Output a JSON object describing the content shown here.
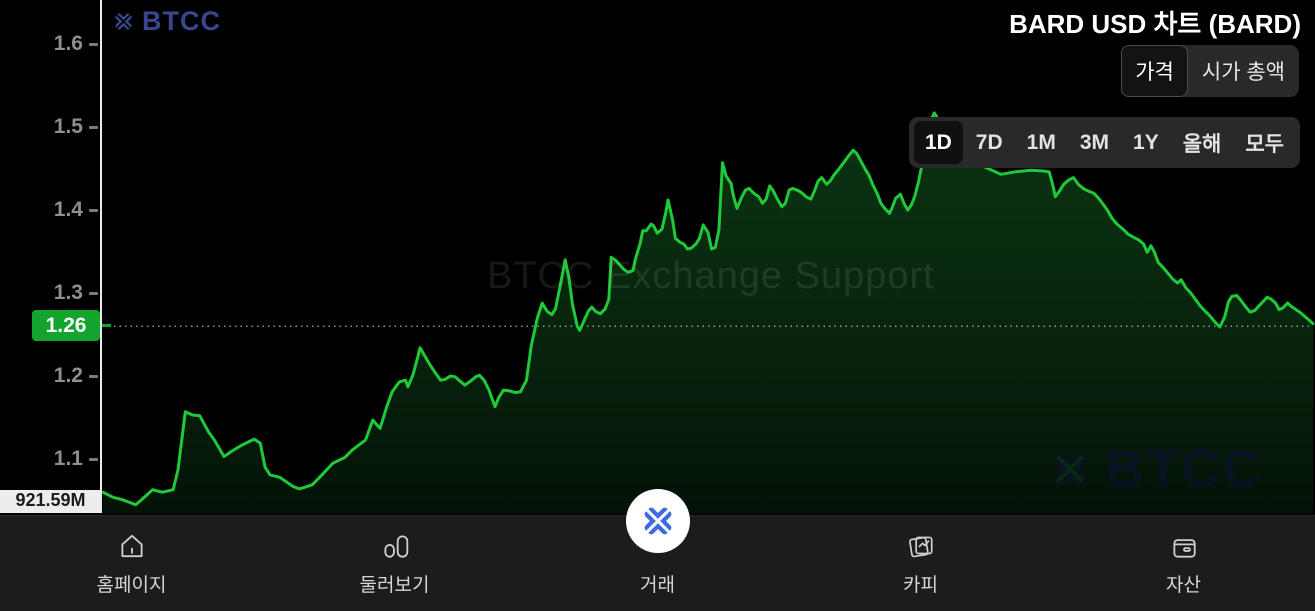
{
  "header": {
    "logo_text": "BTCC",
    "title": "BARD USD 차트 (BARD)"
  },
  "metric_toggle": {
    "options": [
      {
        "label": "가격",
        "selected": true
      },
      {
        "label": "시가 총액",
        "selected": false
      }
    ]
  },
  "range_selector": {
    "options": [
      {
        "label": "1D",
        "selected": true
      },
      {
        "label": "7D",
        "selected": false
      },
      {
        "label": "1M",
        "selected": false
      },
      {
        "label": "3M",
        "selected": false
      },
      {
        "label": "1Y",
        "selected": false
      },
      {
        "label": "올해",
        "selected": false
      },
      {
        "label": "모두",
        "selected": false
      }
    ]
  },
  "y_axis": {
    "labels": [
      "1.6",
      "1.5",
      "1.4",
      "1.3",
      "1.2",
      "1.1"
    ],
    "bottom_label": "921.59M"
  },
  "price_badge": {
    "value": "1.26"
  },
  "watermarks": {
    "center": "BTCC Exchange Support",
    "corner": "BTCC"
  },
  "bottom_nav": {
    "items": [
      {
        "label": "홈페이지",
        "icon": "home-icon"
      },
      {
        "label": "둘러보기",
        "icon": "explore-icon"
      },
      {
        "label": "거래",
        "icon": "btcc-x-icon",
        "highlighted": true
      },
      {
        "label": "카피",
        "icon": "copy-trading-icon"
      },
      {
        "label": "자산",
        "icon": "wallet-icon"
      }
    ]
  },
  "colors": {
    "line_green": "#1fc93a",
    "badge_green": "#12a42c",
    "brand_blue": "#3a478f",
    "trade_icon_blue": "#3f6be0",
    "nav_bg": "#1c1c1e",
    "selector_bg": "#29292b"
  },
  "chart_data": {
    "type": "area",
    "title": "BARD USD price (1D)",
    "ylabel": "USD",
    "xlabel": "",
    "grid": false,
    "legend": false,
    "y_ticks": [
      1.6,
      1.5,
      1.4,
      1.3,
      1.2,
      1.1
    ],
    "ylim": [
      1.037,
      1.653
    ],
    "current_price": 1.26,
    "series": [
      {
        "name": "BARD/USD",
        "points": [
          [
            0.0,
            1.06
          ],
          [
            0.008,
            1.054
          ],
          [
            0.016,
            1.051
          ],
          [
            0.027,
            1.045
          ],
          [
            0.035,
            1.055
          ],
          [
            0.041,
            1.063
          ],
          [
            0.049,
            1.06
          ],
          [
            0.058,
            1.063
          ],
          [
            0.062,
            1.087
          ],
          [
            0.068,
            1.157
          ],
          [
            0.074,
            1.153
          ],
          [
            0.08,
            1.152
          ],
          [
            0.087,
            1.133
          ],
          [
            0.092,
            1.123
          ],
          [
            0.1,
            1.103
          ],
          [
            0.106,
            1.109
          ],
          [
            0.115,
            1.117
          ],
          [
            0.125,
            1.124
          ],
          [
            0.13,
            1.119
          ],
          [
            0.134,
            1.09
          ],
          [
            0.138,
            1.081
          ],
          [
            0.146,
            1.078
          ],
          [
            0.157,
            1.067
          ],
          [
            0.162,
            1.064
          ],
          [
            0.167,
            1.066
          ],
          [
            0.173,
            1.069
          ],
          [
            0.179,
            1.078
          ],
          [
            0.19,
            1.095
          ],
          [
            0.2,
            1.102
          ],
          [
            0.206,
            1.111
          ],
          [
            0.217,
            1.123
          ],
          [
            0.223,
            1.147
          ],
          [
            0.227,
            1.14
          ],
          [
            0.229,
            1.137
          ],
          [
            0.235,
            1.165
          ],
          [
            0.239,
            1.181
          ],
          [
            0.245,
            1.193
          ],
          [
            0.25,
            1.195
          ],
          [
            0.252,
            1.187
          ],
          [
            0.256,
            1.201
          ],
          [
            0.26,
            1.222
          ],
          [
            0.262,
            1.234
          ],
          [
            0.266,
            1.224
          ],
          [
            0.27,
            1.214
          ],
          [
            0.275,
            1.203
          ],
          [
            0.279,
            1.195
          ],
          [
            0.283,
            1.196
          ],
          [
            0.287,
            1.2
          ],
          [
            0.291,
            1.199
          ],
          [
            0.295,
            1.194
          ],
          [
            0.299,
            1.189
          ],
          [
            0.303,
            1.193
          ],
          [
            0.308,
            1.199
          ],
          [
            0.311,
            1.201
          ],
          [
            0.315,
            1.195
          ],
          [
            0.319,
            1.183
          ],
          [
            0.324,
            1.163
          ],
          [
            0.327,
            1.174
          ],
          [
            0.331,
            1.183
          ],
          [
            0.336,
            1.182
          ],
          [
            0.341,
            1.18
          ],
          [
            0.345,
            1.181
          ],
          [
            0.35,
            1.195
          ],
          [
            0.354,
            1.237
          ],
          [
            0.359,
            1.27
          ],
          [
            0.363,
            1.288
          ],
          [
            0.367,
            1.278
          ],
          [
            0.371,
            1.274
          ],
          [
            0.374,
            1.281
          ],
          [
            0.378,
            1.31
          ],
          [
            0.382,
            1.34
          ],
          [
            0.385,
            1.318
          ],
          [
            0.388,
            1.286
          ],
          [
            0.392,
            1.26
          ],
          [
            0.394,
            1.255
          ],
          [
            0.397,
            1.265
          ],
          [
            0.401,
            1.278
          ],
          [
            0.404,
            1.283
          ],
          [
            0.407,
            1.278
          ],
          [
            0.411,
            1.275
          ],
          [
            0.415,
            1.281
          ],
          [
            0.418,
            1.292
          ],
          [
            0.42,
            1.343
          ],
          [
            0.424,
            1.339
          ],
          [
            0.427,
            1.334
          ],
          [
            0.43,
            1.329
          ],
          [
            0.434,
            1.325
          ],
          [
            0.438,
            1.327
          ],
          [
            0.44,
            1.341
          ],
          [
            0.444,
            1.36
          ],
          [
            0.446,
            1.375
          ],
          [
            0.449,
            1.375
          ],
          [
            0.453,
            1.383
          ],
          [
            0.455,
            1.381
          ],
          [
            0.458,
            1.372
          ],
          [
            0.462,
            1.377
          ],
          [
            0.465,
            1.396
          ],
          [
            0.467,
            1.412
          ],
          [
            0.471,
            1.386
          ],
          [
            0.473,
            1.366
          ],
          [
            0.477,
            1.361
          ],
          [
            0.48,
            1.359
          ],
          [
            0.483,
            1.353
          ],
          [
            0.486,
            1.354
          ],
          [
            0.49,
            1.359
          ],
          [
            0.493,
            1.366
          ],
          [
            0.496,
            1.382
          ],
          [
            0.5,
            1.373
          ],
          [
            0.503,
            1.353
          ],
          [
            0.506,
            1.355
          ],
          [
            0.509,
            1.376
          ],
          [
            0.512,
            1.457
          ],
          [
            0.515,
            1.441
          ],
          [
            0.519,
            1.432
          ],
          [
            0.521,
            1.417
          ],
          [
            0.524,
            1.402
          ],
          [
            0.528,
            1.416
          ],
          [
            0.531,
            1.424
          ],
          [
            0.534,
            1.426
          ],
          [
            0.538,
            1.42
          ],
          [
            0.542,
            1.416
          ],
          [
            0.545,
            1.408
          ],
          [
            0.548,
            1.413
          ],
          [
            0.551,
            1.429
          ],
          [
            0.554,
            1.423
          ],
          [
            0.557,
            1.414
          ],
          [
            0.561,
            1.404
          ],
          [
            0.564,
            1.408
          ],
          [
            0.567,
            1.424
          ],
          [
            0.57,
            1.426
          ],
          [
            0.575,
            1.423
          ],
          [
            0.578,
            1.42
          ],
          [
            0.581,
            1.416
          ],
          [
            0.585,
            1.413
          ],
          [
            0.588,
            1.423
          ],
          [
            0.591,
            1.435
          ],
          [
            0.594,
            1.439
          ],
          [
            0.598,
            1.431
          ],
          [
            0.601,
            1.435
          ],
          [
            0.604,
            1.442
          ],
          [
            0.608,
            1.449
          ],
          [
            0.612,
            1.457
          ],
          [
            0.616,
            1.465
          ],
          [
            0.62,
            1.472
          ],
          [
            0.623,
            1.468
          ],
          [
            0.627,
            1.457
          ],
          [
            0.63,
            1.449
          ],
          [
            0.633,
            1.442
          ],
          [
            0.636,
            1.431
          ],
          [
            0.64,
            1.419
          ],
          [
            0.643,
            1.408
          ],
          [
            0.646,
            1.402
          ],
          [
            0.65,
            1.396
          ],
          [
            0.652,
            1.402
          ],
          [
            0.655,
            1.414
          ],
          [
            0.659,
            1.419
          ],
          [
            0.662,
            1.408
          ],
          [
            0.665,
            1.4
          ],
          [
            0.668,
            1.406
          ],
          [
            0.671,
            1.417
          ],
          [
            0.674,
            1.434
          ],
          [
            0.678,
            1.463
          ],
          [
            0.681,
            1.489
          ],
          [
            0.684,
            1.508
          ],
          [
            0.687,
            1.517
          ],
          [
            0.689,
            1.512
          ],
          [
            0.693,
            1.499
          ],
          [
            0.696,
            1.487
          ],
          [
            0.699,
            1.48
          ],
          [
            0.707,
            1.47
          ],
          [
            0.717,
            1.46
          ],
          [
            0.73,
            1.451
          ],
          [
            0.742,
            1.443
          ],
          [
            0.754,
            1.446
          ],
          [
            0.767,
            1.448
          ],
          [
            0.777,
            1.447
          ],
          [
            0.782,
            1.446
          ],
          [
            0.785,
            1.43
          ],
          [
            0.787,
            1.416
          ],
          [
            0.791,
            1.424
          ],
          [
            0.794,
            1.431
          ],
          [
            0.798,
            1.436
          ],
          [
            0.802,
            1.439
          ],
          [
            0.806,
            1.431
          ],
          [
            0.81,
            1.426
          ],
          [
            0.814,
            1.423
          ],
          [
            0.819,
            1.42
          ],
          [
            0.823,
            1.414
          ],
          [
            0.827,
            1.406
          ],
          [
            0.83,
            1.4
          ],
          [
            0.834,
            1.39
          ],
          [
            0.838,
            1.383
          ],
          [
            0.843,
            1.377
          ],
          [
            0.847,
            1.371
          ],
          [
            0.852,
            1.367
          ],
          [
            0.856,
            1.364
          ],
          [
            0.86,
            1.359
          ],
          [
            0.863,
            1.349
          ],
          [
            0.866,
            1.357
          ],
          [
            0.869,
            1.349
          ],
          [
            0.872,
            1.337
          ],
          [
            0.876,
            1.331
          ],
          [
            0.88,
            1.324
          ],
          [
            0.884,
            1.317
          ],
          [
            0.888,
            1.312
          ],
          [
            0.891,
            1.316
          ],
          [
            0.895,
            1.306
          ],
          [
            0.899,
            1.3
          ],
          [
            0.903,
            1.292
          ],
          [
            0.907,
            1.284
          ],
          [
            0.911,
            1.278
          ],
          [
            0.915,
            1.272
          ],
          [
            0.919,
            1.265
          ],
          [
            0.923,
            1.259
          ],
          [
            0.927,
            1.271
          ],
          [
            0.93,
            1.289
          ],
          [
            0.933,
            1.296
          ],
          [
            0.937,
            1.297
          ],
          [
            0.941,
            1.29
          ],
          [
            0.945,
            1.282
          ],
          [
            0.948,
            1.277
          ],
          [
            0.952,
            1.279
          ],
          [
            0.955,
            1.284
          ],
          [
            0.959,
            1.29
          ],
          [
            0.962,
            1.295
          ],
          [
            0.965,
            1.293
          ],
          [
            0.969,
            1.288
          ],
          [
            0.972,
            1.28
          ],
          [
            0.975,
            1.282
          ],
          [
            0.979,
            1.288
          ],
          [
            0.982,
            1.284
          ],
          [
            0.985,
            1.281
          ],
          [
            0.989,
            1.277
          ],
          [
            0.993,
            1.272
          ],
          [
            0.997,
            1.267
          ],
          [
            1.0,
            1.263
          ]
        ]
      }
    ]
  }
}
